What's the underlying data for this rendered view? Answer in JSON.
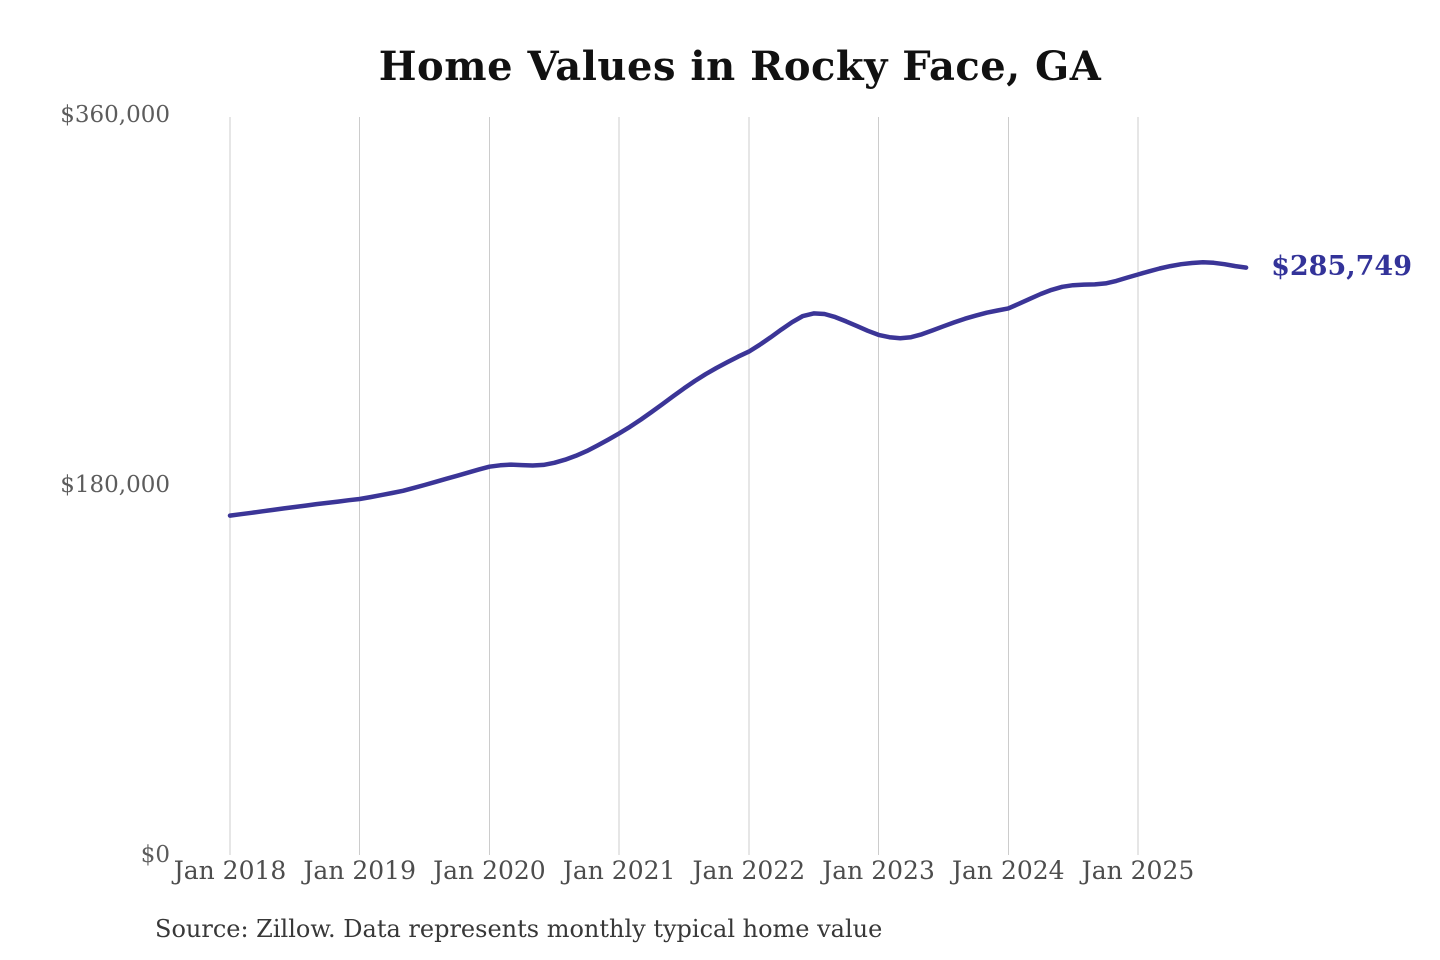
{
  "chart": {
    "title": "Home Values in Rocky Face, GA",
    "latest_value_label": "$285,749",
    "source_note": "Source: Zillow. Data represents monthly typical home value"
  },
  "colors": {
    "background": "#ffffff",
    "line": "#3b3597",
    "latest_value_label": "#333399",
    "gridline": "#cccccc",
    "title": "#111111",
    "y_tick_label": "#5c5c5c",
    "x_tick_label": "#4d4d4d",
    "source_note": "#383838"
  },
  "chart_data": {
    "type": "line",
    "title": "Home Values in Rocky Face, GA",
    "series_name": "Monthly typical home value",
    "x_start": "Jan 2018",
    "x_end": "Nov 2025",
    "x_frequency": "monthly",
    "x_tick_labels": [
      "Jan 2018",
      "Jan 2019",
      "Jan 2020",
      "Jan 2021",
      "Jan 2022",
      "Jan 2023",
      "Jan 2024",
      "Jan 2025"
    ],
    "y_ticks": [
      {
        "label": "$0",
        "value": 0
      },
      {
        "label": "$180,000",
        "value": 180000
      },
      {
        "label": "$360,000",
        "value": 360000
      }
    ],
    "ylim": [
      0,
      360000
    ],
    "grid": "vertical-only",
    "legend": "none",
    "line_color": "#3b3597",
    "annotation": {
      "text": "$285,749",
      "value": 285749,
      "position": "line-end"
    },
    "series": [
      {
        "name": "Typical home value",
        "values": [
          165100,
          165800,
          166500,
          167200,
          167900,
          168600,
          169300,
          170000,
          170700,
          171300,
          171900,
          172600,
          173200,
          174100,
          175100,
          176100,
          177200,
          178600,
          180000,
          181500,
          183000,
          184500,
          186000,
          187500,
          188900,
          189600,
          189900,
          189700,
          189500,
          189800,
          190800,
          192300,
          194200,
          196500,
          199200,
          202100,
          205100,
          208300,
          211800,
          215500,
          219300,
          223200,
          227000,
          230600,
          233900,
          236900,
          239700,
          242400,
          244900,
          248200,
          251800,
          255600,
          259200,
          262200,
          263500,
          263200,
          261700,
          259600,
          257300,
          255000,
          253000,
          251900,
          251400,
          251900,
          253300,
          255200,
          257200,
          259100,
          260900,
          262400,
          263800,
          264900,
          265900,
          268200,
          270600,
          272900,
          274900,
          276400,
          277200,
          277500,
          277600,
          278100,
          279300,
          280900,
          282400,
          283900,
          285300,
          286500,
          287400,
          288000,
          288400,
          288100,
          287400,
          286500,
          285749
        ]
      }
    ],
    "source": "Source: Zillow. Data represents monthly typical home value"
  }
}
